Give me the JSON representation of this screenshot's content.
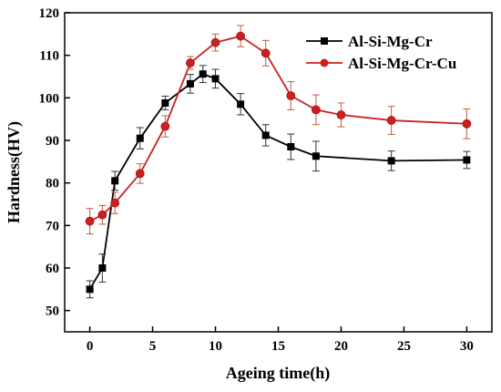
{
  "chart_data": {
    "type": "line",
    "xlabel": "Ageing time(h)",
    "ylabel": "Hardness(HV)",
    "xlim": [
      -2,
      32
    ],
    "ylim": [
      45,
      120
    ],
    "xticks": [
      0,
      5,
      10,
      15,
      20,
      25,
      30
    ],
    "yticks": [
      50,
      60,
      70,
      80,
      90,
      100,
      110,
      120
    ],
    "grid": false,
    "legend_position": "top-right",
    "series": [
      {
        "name": "Al-Si-Mg-Cr",
        "color": "#000000",
        "marker": "square",
        "x": [
          0,
          1,
          2,
          4,
          6,
          8,
          9,
          10,
          12,
          14,
          16,
          18,
          24,
          30
        ],
        "y": [
          55,
          60,
          80.5,
          90.5,
          98.8,
          103.3,
          105.6,
          104.5,
          98.5,
          91.2,
          88.5,
          86.3,
          85.2,
          85.4
        ],
        "err": [
          2,
          3.3,
          2.2,
          2.5,
          1.6,
          2.2,
          2,
          2.2,
          2.5,
          2.5,
          3,
          3.5,
          2.3,
          2
        ]
      },
      {
        "name": "Al-Si-Mg-Cr-Cu",
        "color": "#cc1f1f",
        "marker": "circle",
        "x": [
          0,
          1,
          2,
          4,
          6,
          8,
          10,
          12,
          14,
          16,
          18,
          20,
          24,
          30
        ],
        "y": [
          71,
          72.5,
          75.3,
          82.2,
          93.3,
          108.2,
          113,
          114.5,
          110.5,
          100.5,
          97.2,
          96,
          94.7,
          93.9
        ],
        "err": [
          3,
          2.2,
          2.5,
          2.3,
          2.5,
          1.5,
          2,
          2.5,
          3,
          3.3,
          3.5,
          2.8,
          3.3,
          3.5
        ]
      }
    ]
  }
}
